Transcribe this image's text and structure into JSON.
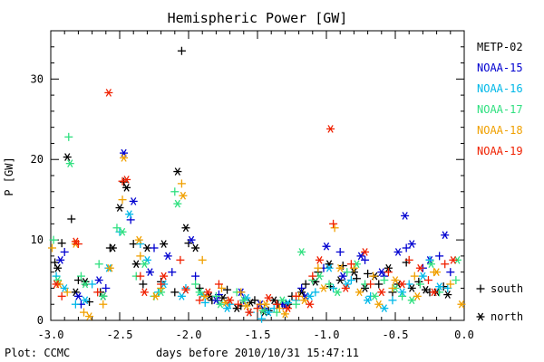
{
  "chart_data": {
    "type": "scatter",
    "title": "Hemispheric Power [GW]",
    "xlabel": "days before 2010/10/31 15:47:11",
    "ylabel": "P [GW]",
    "xlim": [
      -3.0,
      0.0
    ],
    "ylim": [
      0,
      36
    ],
    "x_ticks": [
      -3.0,
      -2.5,
      -2.0,
      -1.5,
      -1.0,
      -0.5,
      0.0
    ],
    "x_tick_labels": [
      "-3.0",
      "-2.5",
      "-2.0",
      "-1.5",
      "-1.0",
      "-0.5",
      "0.0"
    ],
    "y_ticks": [
      0,
      10,
      20,
      30
    ],
    "y_tick_labels": [
      "0",
      "10",
      "20",
      "30"
    ],
    "grid": false,
    "legend_position": "right",
    "hemisphere_markers": [
      {
        "symbol": "+",
        "label": "south"
      },
      {
        "symbol": "*",
        "label": "north"
      }
    ],
    "footer": "Plot: CCMC",
    "series": [
      {
        "name": "METP-02",
        "color": "#000000",
        "south": [
          [
            -2.97,
            7.2
          ],
          [
            -2.92,
            9.6
          ],
          [
            -2.85,
            12.6
          ],
          [
            -2.8,
            5.0
          ],
          [
            -2.72,
            2.3
          ],
          [
            -2.64,
            3.5
          ],
          [
            -2.57,
            9.0
          ],
          [
            -2.47,
            17.2
          ],
          [
            -2.4,
            9.5
          ],
          [
            -2.33,
            4.5
          ],
          [
            -2.2,
            4.8
          ],
          [
            -2.1,
            3.5
          ],
          [
            -2.05,
            33.5
          ],
          [
            -2.0,
            9.6
          ],
          [
            -1.92,
            4.0
          ],
          [
            -1.83,
            2.5
          ],
          [
            -1.72,
            3.8
          ],
          [
            -1.62,
            1.8
          ],
          [
            -1.52,
            2.5
          ],
          [
            -1.42,
            1.2
          ],
          [
            -1.35,
            2.0
          ],
          [
            -1.25,
            3.0
          ],
          [
            -1.15,
            4.5
          ],
          [
            -1.06,
            6.0
          ],
          [
            -0.97,
            4.2
          ],
          [
            -0.88,
            6.8
          ],
          [
            -0.78,
            5.2
          ],
          [
            -0.7,
            5.8
          ],
          [
            -0.62,
            4.5
          ],
          [
            -0.52,
            3.5
          ],
          [
            -0.42,
            7.2
          ],
          [
            -0.33,
            4.8
          ],
          [
            -0.25,
            3.5
          ],
          [
            -0.15,
            4.2
          ]
        ],
        "north": [
          [
            -2.95,
            6.5
          ],
          [
            -2.88,
            20.3
          ],
          [
            -2.82,
            3.5
          ],
          [
            -2.75,
            4.8
          ],
          [
            -2.62,
            3.0
          ],
          [
            -2.55,
            9.0
          ],
          [
            -2.5,
            14.0
          ],
          [
            -2.45,
            16.5
          ],
          [
            -2.38,
            7.0
          ],
          [
            -2.3,
            9.0
          ],
          [
            -2.18,
            9.5
          ],
          [
            -2.08,
            18.5
          ],
          [
            -2.02,
            11.5
          ],
          [
            -1.95,
            9.0
          ],
          [
            -1.85,
            3.0
          ],
          [
            -1.75,
            2.8
          ],
          [
            -1.65,
            1.5
          ],
          [
            -1.55,
            2.2
          ],
          [
            -1.45,
            1.0
          ],
          [
            -1.38,
            2.5
          ],
          [
            -1.28,
            2.0
          ],
          [
            -1.18,
            3.5
          ],
          [
            -1.08,
            4.8
          ],
          [
            -0.98,
            7.0
          ],
          [
            -0.9,
            5.0
          ],
          [
            -0.8,
            6.0
          ],
          [
            -0.72,
            4.0
          ],
          [
            -0.65,
            5.5
          ],
          [
            -0.55,
            6.5
          ],
          [
            -0.48,
            4.5
          ],
          [
            -0.38,
            4.0
          ],
          [
            -0.28,
            3.8
          ],
          [
            -0.2,
            3.5
          ],
          [
            -0.12,
            3.2
          ]
        ]
      },
      {
        "name": "NOAA-15",
        "color": "#0000d0",
        "south": [
          [
            -2.9,
            8.5
          ],
          [
            -2.78,
            2.0
          ],
          [
            -2.6,
            4.0
          ],
          [
            -2.42,
            12.5
          ],
          [
            -2.25,
            9.0
          ],
          [
            -2.12,
            6.0
          ],
          [
            -1.95,
            5.5
          ],
          [
            -1.78,
            3.2
          ],
          [
            -1.6,
            2.5
          ],
          [
            -1.45,
            1.5
          ],
          [
            -1.32,
            2.0
          ],
          [
            -1.18,
            4.0
          ],
          [
            -1.02,
            6.5
          ],
          [
            -0.9,
            8.5
          ],
          [
            -0.72,
            7.5
          ],
          [
            -0.58,
            5.5
          ],
          [
            -0.42,
            9.0
          ],
          [
            -0.3,
            6.5
          ],
          [
            -0.18,
            8.0
          ],
          [
            -0.1,
            6.0
          ]
        ],
        "north": [
          [
            -2.93,
            7.5
          ],
          [
            -2.8,
            3.0
          ],
          [
            -2.65,
            5.0
          ],
          [
            -2.47,
            20.8
          ],
          [
            -2.4,
            14.8
          ],
          [
            -2.28,
            6.0
          ],
          [
            -2.15,
            8.0
          ],
          [
            -1.98,
            10.0
          ],
          [
            -1.8,
            2.5
          ],
          [
            -1.62,
            3.5
          ],
          [
            -1.48,
            2.0
          ],
          [
            -1.3,
            1.8
          ],
          [
            -1.15,
            3.0
          ],
          [
            -1.0,
            9.2
          ],
          [
            -0.88,
            5.5
          ],
          [
            -0.75,
            8.0
          ],
          [
            -0.6,
            6.0
          ],
          [
            -0.48,
            8.5
          ],
          [
            -0.43,
            13.0
          ],
          [
            -0.38,
            9.5
          ],
          [
            -0.25,
            7.5
          ],
          [
            -0.14,
            10.6
          ]
        ]
      },
      {
        "name": "NOAA-16",
        "color": "#00b8e8",
        "south": [
          [
            -2.96,
            5.5
          ],
          [
            -2.82,
            2.0
          ],
          [
            -2.7,
            4.5
          ],
          [
            -2.5,
            11.0
          ],
          [
            -2.35,
            9.5
          ],
          [
            -2.22,
            3.5
          ],
          [
            -2.02,
            4.0
          ],
          [
            -1.88,
            2.2
          ],
          [
            -1.7,
            2.0
          ],
          [
            -1.55,
            1.0
          ],
          [
            -1.47,
            0.2
          ],
          [
            -1.38,
            1.5
          ],
          [
            -1.22,
            2.5
          ],
          [
            -1.08,
            3.5
          ],
          [
            -0.95,
            4.0
          ],
          [
            -0.82,
            5.0
          ],
          [
            -0.68,
            3.0
          ],
          [
            -0.52,
            2.5
          ],
          [
            -0.4,
            4.5
          ],
          [
            -0.25,
            7.5
          ],
          [
            -0.12,
            4.0
          ]
        ],
        "north": [
          [
            -2.9,
            4.0
          ],
          [
            -2.75,
            2.5
          ],
          [
            -2.58,
            6.5
          ],
          [
            -2.43,
            13.2
          ],
          [
            -2.3,
            7.5
          ],
          [
            -2.18,
            4.5
          ],
          [
            -2.05,
            3.0
          ],
          [
            -1.9,
            3.2
          ],
          [
            -1.72,
            1.5
          ],
          [
            -1.58,
            2.8
          ],
          [
            -1.42,
            1.0
          ],
          [
            -1.28,
            2.2
          ],
          [
            -1.12,
            3.0
          ],
          [
            -0.98,
            6.5
          ],
          [
            -0.85,
            4.5
          ],
          [
            -0.7,
            2.5
          ],
          [
            -0.58,
            1.5
          ],
          [
            -0.45,
            3.5
          ],
          [
            -0.3,
            5.5
          ],
          [
            -0.18,
            4.2
          ]
        ]
      },
      {
        "name": "NOAA-17",
        "color": "#30e080",
        "south": [
          [
            -2.98,
            10.0
          ],
          [
            -2.87,
            22.8
          ],
          [
            -2.78,
            5.5
          ],
          [
            -2.65,
            7.0
          ],
          [
            -2.52,
            11.5
          ],
          [
            -2.38,
            5.5
          ],
          [
            -2.25,
            3.0
          ],
          [
            -2.1,
            16.0
          ],
          [
            -1.95,
            4.5
          ],
          [
            -1.8,
            3.0
          ],
          [
            -1.65,
            3.5
          ],
          [
            -1.5,
            1.5
          ],
          [
            -1.36,
            1.0
          ],
          [
            -1.22,
            2.0
          ],
          [
            -1.1,
            5.0
          ],
          [
            -0.98,
            4.5
          ],
          [
            -0.85,
            6.0
          ],
          [
            -0.72,
            4.5
          ],
          [
            -0.58,
            5.0
          ],
          [
            -0.45,
            3.0
          ],
          [
            -0.32,
            4.5
          ],
          [
            -0.18,
            3.5
          ],
          [
            -0.06,
            5.0
          ]
        ],
        "north": [
          [
            -2.95,
            5.0
          ],
          [
            -2.86,
            19.5
          ],
          [
            -2.75,
            4.5
          ],
          [
            -2.62,
            3.0
          ],
          [
            -2.48,
            11.0
          ],
          [
            -2.32,
            7.0
          ],
          [
            -2.2,
            3.5
          ],
          [
            -2.08,
            14.5
          ],
          [
            -1.92,
            3.5
          ],
          [
            -1.77,
            2.0
          ],
          [
            -1.6,
            2.5
          ],
          [
            -1.46,
            1.2
          ],
          [
            -1.32,
            2.5
          ],
          [
            -1.18,
            8.5
          ],
          [
            -1.05,
            5.5
          ],
          [
            -0.92,
            3.5
          ],
          [
            -0.78,
            7.0
          ],
          [
            -0.65,
            3.0
          ],
          [
            -0.5,
            4.0
          ],
          [
            -0.38,
            2.5
          ],
          [
            -0.24,
            7.0
          ],
          [
            -0.05,
            7.5
          ]
        ]
      },
      {
        "name": "NOAA-18",
        "color": "#f0a000",
        "south": [
          [
            -2.99,
            9.0
          ],
          [
            -2.88,
            3.5
          ],
          [
            -2.76,
            1.0
          ],
          [
            -2.62,
            2.0
          ],
          [
            -2.48,
            15.0
          ],
          [
            -2.35,
            8.0
          ],
          [
            -2.2,
            4.0
          ],
          [
            -2.05,
            17.0
          ],
          [
            -1.9,
            7.5
          ],
          [
            -1.76,
            4.0
          ],
          [
            -1.62,
            3.5
          ],
          [
            -1.48,
            2.0
          ],
          [
            -1.34,
            1.5
          ],
          [
            -1.2,
            3.0
          ],
          [
            -1.06,
            6.5
          ],
          [
            -0.94,
            11.5
          ],
          [
            -0.8,
            6.5
          ],
          [
            -0.66,
            5.5
          ],
          [
            -0.52,
            4.0
          ],
          [
            -0.36,
            5.5
          ],
          [
            -0.22,
            6.0
          ],
          [
            -0.1,
            4.5
          ]
        ],
        "north": [
          [
            -2.94,
            4.5
          ],
          [
            -2.82,
            9.5
          ],
          [
            -2.72,
            0.5
          ],
          [
            -2.57,
            6.5
          ],
          [
            -2.47,
            20.2
          ],
          [
            -2.36,
            10.0
          ],
          [
            -2.24,
            3.0
          ],
          [
            -2.04,
            15.5
          ],
          [
            -1.88,
            3.0
          ],
          [
            -1.73,
            2.2
          ],
          [
            -1.58,
            1.8
          ],
          [
            -1.44,
            2.0
          ],
          [
            -1.3,
            0.8
          ],
          [
            -1.16,
            2.5
          ],
          [
            -1.02,
            4.0
          ],
          [
            -0.9,
            6.5
          ],
          [
            -0.76,
            3.5
          ],
          [
            -0.62,
            2.0
          ],
          [
            -0.5,
            5.0
          ],
          [
            -0.34,
            3.0
          ],
          [
            -0.2,
            6.0
          ],
          [
            -0.02,
            2.0
          ]
        ]
      },
      {
        "name": "NOAA-19",
        "color": "#f02000",
        "south": [
          [
            -2.92,
            3.0
          ],
          [
            -2.8,
            9.5
          ],
          [
            -2.66,
            3.5
          ],
          [
            -2.48,
            17.3
          ],
          [
            -2.35,
            5.5
          ],
          [
            -2.2,
            4.5
          ],
          [
            -2.06,
            7.5
          ],
          [
            -1.92,
            2.5
          ],
          [
            -1.78,
            4.5
          ],
          [
            -1.64,
            2.0
          ],
          [
            -1.5,
            1.5
          ],
          [
            -1.36,
            2.0
          ],
          [
            -1.22,
            3.0
          ],
          [
            -1.1,
            5.5
          ],
          [
            -0.95,
            12.0
          ],
          [
            -0.82,
            7.0
          ],
          [
            -0.68,
            4.5
          ],
          [
            -0.55,
            6.0
          ],
          [
            -0.4,
            7.5
          ],
          [
            -0.26,
            5.0
          ],
          [
            -0.14,
            7.0
          ]
        ],
        "north": [
          [
            -2.96,
            4.5
          ],
          [
            -2.82,
            9.8
          ],
          [
            -2.58,
            28.3
          ],
          [
            -2.45,
            17.5
          ],
          [
            -2.32,
            3.5
          ],
          [
            -2.18,
            5.5
          ],
          [
            -2.02,
            3.8
          ],
          [
            -1.86,
            3.5
          ],
          [
            -1.7,
            2.5
          ],
          [
            -1.56,
            1.0
          ],
          [
            -1.42,
            2.8
          ],
          [
            -1.28,
            1.5
          ],
          [
            -1.12,
            2.0
          ],
          [
            -1.05,
            7.5
          ],
          [
            -0.97,
            23.8
          ],
          [
            -0.86,
            4.0
          ],
          [
            -0.72,
            8.5
          ],
          [
            -0.6,
            3.5
          ],
          [
            -0.45,
            4.5
          ],
          [
            -0.32,
            6.5
          ],
          [
            -0.22,
            3.5
          ],
          [
            -0.08,
            7.5
          ]
        ]
      }
    ]
  }
}
